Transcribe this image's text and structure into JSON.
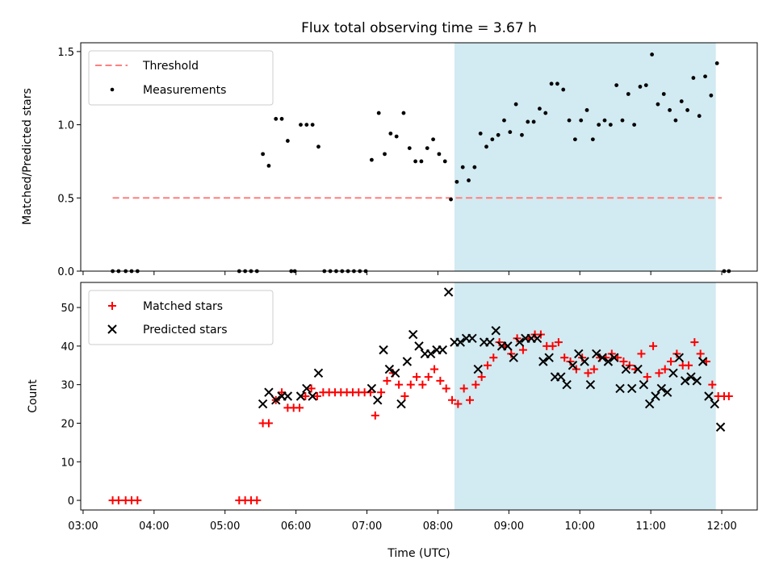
{
  "chart_data": [
    {
      "type": "scatter",
      "title": "Flux total observing time = 3.67 h",
      "xlabel": "",
      "ylabel": "Matched/Predicted stars",
      "ylim": [
        0,
        1.56
      ],
      "yticks": [
        "0.0",
        "0.5",
        "1.0",
        "1.5"
      ],
      "xlim": [
        "02:58",
        "12:30"
      ],
      "grid": false,
      "legend": {
        "position": "top-left",
        "entries": [
          "Threshold",
          "Measurements"
        ]
      },
      "threshold": {
        "name": "Threshold",
        "value": 0.5,
        "x_start": "03:25",
        "x_end": "12:00",
        "color": "#ff7f7f"
      },
      "highlight_span": {
        "x_start": "08:14",
        "x_end": "11:55",
        "color": "#add8e6"
      },
      "series": [
        {
          "name": "Measurements",
          "color": "#000000",
          "points": [
            [
              "03:25",
              0
            ],
            [
              "03:30",
              0
            ],
            [
              "03:36",
              0
            ],
            [
              "03:41",
              0
            ],
            [
              "03:46",
              0
            ],
            [
              "05:12",
              0
            ],
            [
              "05:17",
              0
            ],
            [
              "05:22",
              0
            ],
            [
              "05:27",
              0
            ],
            [
              "05:32",
              0.8
            ],
            [
              "05:37",
              0.72
            ],
            [
              "05:43",
              1.04
            ],
            [
              "05:48",
              1.04
            ],
            [
              "05:53",
              0.89
            ],
            [
              "05:56",
              0
            ],
            [
              "05:59",
              0
            ],
            [
              "06:04",
              1.0
            ],
            [
              "06:09",
              1.0
            ],
            [
              "06:14",
              1.0
            ],
            [
              "06:19",
              0.85
            ],
            [
              "06:24",
              0
            ],
            [
              "06:29",
              0
            ],
            [
              "06:34",
              0
            ],
            [
              "06:39",
              0
            ],
            [
              "06:44",
              0
            ],
            [
              "06:49",
              0
            ],
            [
              "06:54",
              0
            ],
            [
              "06:59",
              0
            ],
            [
              "07:04",
              0.76
            ],
            [
              "07:10",
              1.08
            ],
            [
              "07:15",
              0.8
            ],
            [
              "07:20",
              0.94
            ],
            [
              "07:25",
              0.92
            ],
            [
              "07:31",
              1.08
            ],
            [
              "07:36",
              0.84
            ],
            [
              "07:41",
              0.75
            ],
            [
              "07:46",
              0.75
            ],
            [
              "07:51",
              0.84
            ],
            [
              "07:56",
              0.9
            ],
            [
              "08:01",
              0.8
            ],
            [
              "08:06",
              0.75
            ],
            [
              "08:11",
              0.49
            ],
            [
              "08:16",
              0.61
            ],
            [
              "08:21",
              0.71
            ],
            [
              "08:26",
              0.62
            ],
            [
              "08:31",
              0.71
            ],
            [
              "08:36",
              0.94
            ],
            [
              "08:41",
              0.85
            ],
            [
              "08:46",
              0.9
            ],
            [
              "08:51",
              0.93
            ],
            [
              "08:56",
              1.03
            ],
            [
              "09:01",
              0.95
            ],
            [
              "09:06",
              1.14
            ],
            [
              "09:11",
              0.93
            ],
            [
              "09:16",
              1.02
            ],
            [
              "09:21",
              1.02
            ],
            [
              "09:26",
              1.11
            ],
            [
              "09:31",
              1.08
            ],
            [
              "09:36",
              1.28
            ],
            [
              "09:41",
              1.28
            ],
            [
              "09:46",
              1.24
            ],
            [
              "09:51",
              1.03
            ],
            [
              "09:56",
              0.9
            ],
            [
              "10:01",
              1.03
            ],
            [
              "10:06",
              1.1
            ],
            [
              "10:11",
              0.9
            ],
            [
              "10:16",
              1.0
            ],
            [
              "10:21",
              1.03
            ],
            [
              "10:26",
              1.0
            ],
            [
              "10:31",
              1.27
            ],
            [
              "10:36",
              1.03
            ],
            [
              "10:41",
              1.21
            ],
            [
              "10:46",
              1.0
            ],
            [
              "10:51",
              1.26
            ],
            [
              "10:56",
              1.27
            ],
            [
              "11:01",
              1.48
            ],
            [
              "11:06",
              1.14
            ],
            [
              "11:11",
              1.21
            ],
            [
              "11:16",
              1.1
            ],
            [
              "11:21",
              1.03
            ],
            [
              "11:26",
              1.16
            ],
            [
              "11:31",
              1.1
            ],
            [
              "11:36",
              1.32
            ],
            [
              "11:41",
              1.06
            ],
            [
              "11:46",
              1.33
            ],
            [
              "11:51",
              1.2
            ],
            [
              "11:56",
              1.42
            ],
            [
              "12:02",
              0
            ],
            [
              "12:06",
              0
            ]
          ]
        }
      ]
    },
    {
      "type": "scatter",
      "title": "",
      "xlabel": "Time (UTC)",
      "ylabel": "Count",
      "ylim": [
        -2.5,
        56.5
      ],
      "yticks": [
        "0",
        "10",
        "20",
        "30",
        "40",
        "50"
      ],
      "xlim": [
        "02:58",
        "12:30"
      ],
      "xticks": [
        "03:00",
        "04:00",
        "05:00",
        "06:00",
        "07:00",
        "08:00",
        "09:00",
        "10:00",
        "11:00",
        "12:00"
      ],
      "grid": false,
      "legend": {
        "position": "top-left",
        "entries": [
          "Matched stars",
          "Predicted stars"
        ]
      },
      "highlight_span": {
        "x_start": "08:14",
        "x_end": "11:55",
        "color": "#add8e6"
      },
      "series": [
        {
          "name": "Matched stars",
          "marker": "+",
          "color": "#ff0000",
          "points": [
            [
              "03:25",
              0
            ],
            [
              "03:30",
              0
            ],
            [
              "03:36",
              0
            ],
            [
              "03:41",
              0
            ],
            [
              "03:46",
              0
            ],
            [
              "05:12",
              0
            ],
            [
              "05:17",
              0
            ],
            [
              "05:22",
              0
            ],
            [
              "05:27",
              0
            ],
            [
              "05:32",
              20
            ],
            [
              "05:37",
              20
            ],
            [
              "05:43",
              26
            ],
            [
              "05:48",
              28
            ],
            [
              "05:53",
              24
            ],
            [
              "05:58",
              24
            ],
            [
              "06:03",
              24
            ],
            [
              "06:08",
              27
            ],
            [
              "06:13",
              29
            ],
            [
              "06:18",
              27
            ],
            [
              "06:23",
              28
            ],
            [
              "06:28",
              28
            ],
            [
              "06:33",
              28
            ],
            [
              "06:38",
              28
            ],
            [
              "06:43",
              28
            ],
            [
              "06:48",
              28
            ],
            [
              "06:53",
              28
            ],
            [
              "06:58",
              28
            ],
            [
              "07:03",
              28
            ],
            [
              "07:07",
              22
            ],
            [
              "07:12",
              28
            ],
            [
              "07:17",
              31
            ],
            [
              "07:22",
              33
            ],
            [
              "07:27",
              30
            ],
            [
              "07:32",
              27
            ],
            [
              "07:37",
              30
            ],
            [
              "07:42",
              32
            ],
            [
              "07:47",
              30
            ],
            [
              "07:52",
              32
            ],
            [
              "07:57",
              34
            ],
            [
              "08:02",
              31
            ],
            [
              "08:07",
              29
            ],
            [
              "08:12",
              26
            ],
            [
              "08:17",
              25
            ],
            [
              "08:22",
              29
            ],
            [
              "08:27",
              26
            ],
            [
              "08:32",
              30
            ],
            [
              "08:37",
              32
            ],
            [
              "08:42",
              35
            ],
            [
              "08:47",
              37
            ],
            [
              "08:52",
              41
            ],
            [
              "08:57",
              40
            ],
            [
              "09:02",
              38
            ],
            [
              "09:07",
              42
            ],
            [
              "09:12",
              39
            ],
            [
              "09:17",
              42
            ],
            [
              "09:22",
              43
            ],
            [
              "09:27",
              43
            ],
            [
              "09:32",
              40
            ],
            [
              "09:37",
              40
            ],
            [
              "09:42",
              41
            ],
            [
              "09:47",
              37
            ],
            [
              "09:52",
              36
            ],
            [
              "09:57",
              34
            ],
            [
              "10:02",
              37
            ],
            [
              "10:07",
              33
            ],
            [
              "10:12",
              34
            ],
            [
              "10:17",
              37
            ],
            [
              "10:22",
              37
            ],
            [
              "10:27",
              38
            ],
            [
              "10:32",
              37
            ],
            [
              "10:37",
              36
            ],
            [
              "10:42",
              35
            ],
            [
              "10:47",
              34
            ],
            [
              "10:52",
              38
            ],
            [
              "10:57",
              32
            ],
            [
              "11:02",
              40
            ],
            [
              "11:07",
              33
            ],
            [
              "11:12",
              34
            ],
            [
              "11:17",
              36
            ],
            [
              "11:22",
              38
            ],
            [
              "11:27",
              35
            ],
            [
              "11:32",
              35
            ],
            [
              "11:37",
              41
            ],
            [
              "11:42",
              38
            ],
            [
              "11:47",
              36
            ],
            [
              "11:52",
              30
            ],
            [
              "11:57",
              27
            ],
            [
              "12:02",
              27
            ],
            [
              "12:06",
              27
            ]
          ]
        },
        {
          "name": "Predicted stars",
          "marker": "x",
          "color": "#000000",
          "points": [
            [
              "05:32",
              25
            ],
            [
              "05:37",
              28
            ],
            [
              "05:43",
              26
            ],
            [
              "05:48",
              27
            ],
            [
              "05:53",
              27
            ],
            [
              "06:04",
              27
            ],
            [
              "06:09",
              29
            ],
            [
              "06:14",
              27
            ],
            [
              "06:19",
              33
            ],
            [
              "07:04",
              29
            ],
            [
              "07:09",
              26
            ],
            [
              "07:14",
              39
            ],
            [
              "07:19",
              34
            ],
            [
              "07:24",
              33
            ],
            [
              "07:29",
              25
            ],
            [
              "07:34",
              36
            ],
            [
              "07:39",
              43
            ],
            [
              "07:44",
              40
            ],
            [
              "07:49",
              38
            ],
            [
              "07:54",
              38
            ],
            [
              "07:59",
              39
            ],
            [
              "08:04",
              39
            ],
            [
              "08:09",
              54
            ],
            [
              "08:14",
              41
            ],
            [
              "08:19",
              41
            ],
            [
              "08:24",
              42
            ],
            [
              "08:29",
              42
            ],
            [
              "08:34",
              34
            ],
            [
              "08:39",
              41
            ],
            [
              "08:44",
              41
            ],
            [
              "08:49",
              44
            ],
            [
              "08:54",
              40
            ],
            [
              "08:59",
              40
            ],
            [
              "09:04",
              37
            ],
            [
              "09:09",
              41
            ],
            [
              "09:14",
              42
            ],
            [
              "09:19",
              42
            ],
            [
              "09:24",
              42
            ],
            [
              "09:29",
              36
            ],
            [
              "09:34",
              37
            ],
            [
              "09:39",
              32
            ],
            [
              "09:44",
              32
            ],
            [
              "09:49",
              30
            ],
            [
              "09:54",
              35
            ],
            [
              "09:59",
              38
            ],
            [
              "10:04",
              36
            ],
            [
              "10:09",
              30
            ],
            [
              "10:14",
              38
            ],
            [
              "10:19",
              37
            ],
            [
              "10:24",
              36
            ],
            [
              "10:29",
              37
            ],
            [
              "10:34",
              29
            ],
            [
              "10:39",
              34
            ],
            [
              "10:44",
              29
            ],
            [
              "10:49",
              34
            ],
            [
              "10:54",
              30
            ],
            [
              "10:59",
              25
            ],
            [
              "11:04",
              27
            ],
            [
              "11:09",
              29
            ],
            [
              "11:14",
              28
            ],
            [
              "11:19",
              33
            ],
            [
              "11:24",
              37
            ],
            [
              "11:29",
              31
            ],
            [
              "11:34",
              32
            ],
            [
              "11:39",
              31
            ],
            [
              "11:44",
              36
            ],
            [
              "11:49",
              27
            ],
            [
              "11:54",
              25
            ],
            [
              "11:59",
              19
            ]
          ]
        }
      ]
    }
  ]
}
